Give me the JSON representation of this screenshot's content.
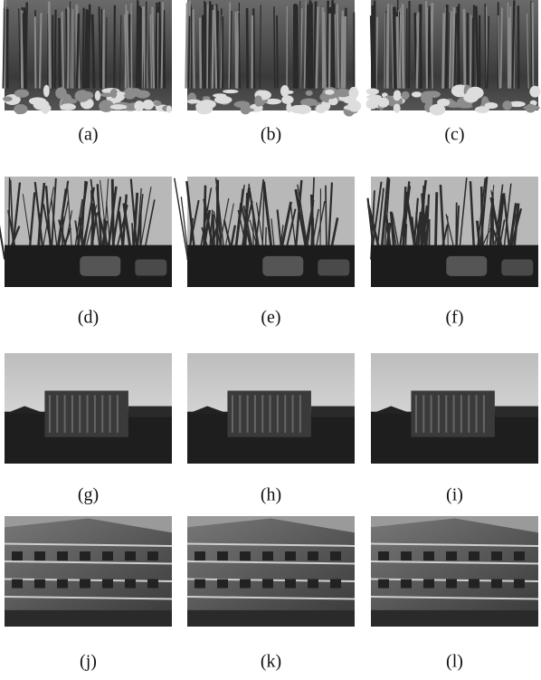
{
  "panels": [
    {
      "label": "(a)"
    },
    {
      "label": "(b)"
    },
    {
      "label": "(c)"
    },
    {
      "label": "(d)"
    },
    {
      "label": "(e)"
    },
    {
      "label": "(f)"
    },
    {
      "label": "(g)"
    },
    {
      "label": "(h)"
    },
    {
      "label": "(i)"
    },
    {
      "label": "(j)"
    },
    {
      "label": "(k)"
    },
    {
      "label": "(l)"
    }
  ]
}
